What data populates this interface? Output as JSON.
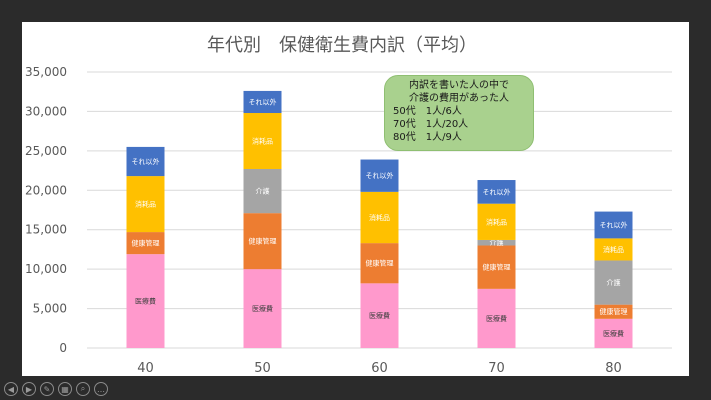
{
  "chart_data": {
    "type": "bar",
    "stacked": true,
    "title": "年代別　保健衛生費内訳（平均）",
    "categories": [
      "40",
      "50",
      "60",
      "70",
      "80"
    ],
    "ylim": [
      0,
      35000
    ],
    "yticks": [
      "0",
      "5,000",
      "10,000",
      "15,000",
      "20,000",
      "25,000",
      "30,000",
      "35,000"
    ],
    "ytick_values": [
      0,
      5000,
      10000,
      15000,
      20000,
      25000,
      30000,
      35000
    ],
    "grid": true,
    "series": [
      {
        "name": "医療費",
        "color": "#ff99cc",
        "values": [
          11900,
          10000,
          8200,
          7500,
          3700
        ]
      },
      {
        "name": "健康管理",
        "color": "#ed7d31",
        "values": [
          2800,
          7100,
          5100,
          5500,
          1800
        ]
      },
      {
        "name": "介護",
        "color": "#a5a5a5",
        "values": [
          0,
          5600,
          0,
          700,
          5600
        ]
      },
      {
        "name": "消耗品",
        "color": "#ffc000",
        "values": [
          7100,
          7100,
          6500,
          4600,
          2800
        ]
      },
      {
        "name": "それ以外",
        "color": "#4472c4",
        "values": [
          3700,
          2800,
          4100,
          3000,
          3400
        ]
      }
    ]
  },
  "callout": {
    "line1": "内訳を書いた人の中で",
    "line2": "介護の費用があった人",
    "rows": [
      "50代　1人/6人",
      "70代　1人/20人",
      "80代　1人/9人"
    ]
  },
  "nav_icons": [
    "prev-icon",
    "next-icon",
    "pen-icon",
    "pages-icon",
    "zoom-icon",
    "more-icon"
  ]
}
